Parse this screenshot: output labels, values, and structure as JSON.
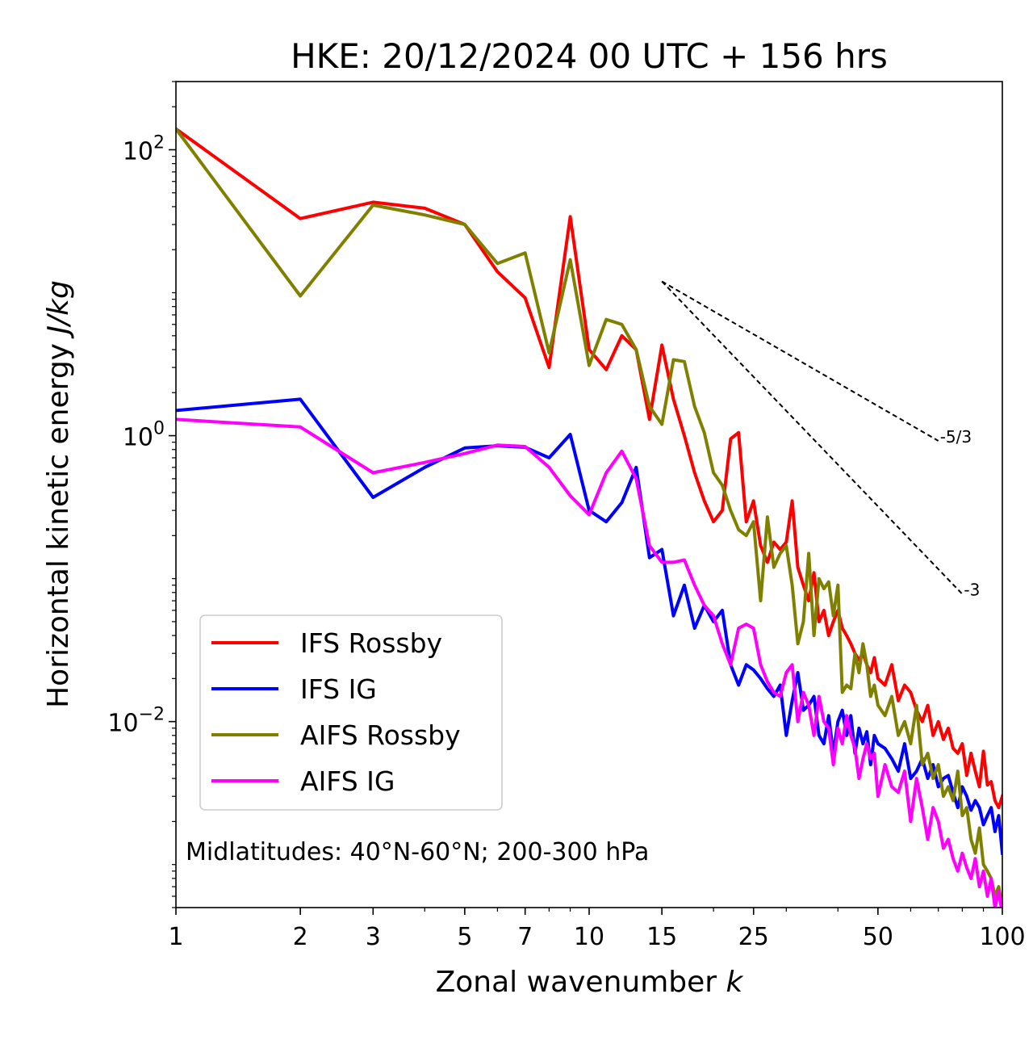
{
  "chart_data": {
    "type": "line",
    "title": "HKE: 20/12/2024 00 UTC + 156 hrs",
    "xlabel": "Zonal wavenumber",
    "xlabel_var": "k",
    "ylabel": "Horizontal kinetic energy",
    "ylabel_unit": "J/kg",
    "xscale": "log",
    "yscale": "log",
    "xlim": [
      1,
      100
    ],
    "ylim": [
      0.0005,
      300
    ],
    "x_ticks": [
      1,
      2,
      3,
      5,
      7,
      10,
      15,
      25,
      50,
      100
    ],
    "x_tick_labels": [
      "1",
      "2",
      "3",
      "5",
      "7",
      "10",
      "15",
      "25",
      "50",
      "100"
    ],
    "y_ticks": [
      0.01,
      1,
      100
    ],
    "y_tick_base": "10",
    "y_tick_exponents": [
      "−2",
      "0",
      "2"
    ],
    "legend_position": "lower-left",
    "annotation": "Midlatitudes: 40°N-60°N; 200-300 hPa",
    "reference_slopes": [
      {
        "label": "-5/3",
        "x": [
          15,
          70
        ],
        "y": [
          12.0,
          0.92
        ]
      },
      {
        "label": "-3",
        "x": [
          15,
          80
        ],
        "y": [
          12.0,
          0.078
        ]
      }
    ],
    "series": [
      {
        "name": "IFS Rossby",
        "color": "#ff0000",
        "x": [
          1,
          2,
          3,
          4,
          5,
          6,
          7,
          8,
          9,
          10,
          11,
          12,
          13,
          14,
          15,
          16,
          17,
          18,
          19,
          20,
          21,
          22,
          23,
          24,
          25,
          26,
          27,
          28,
          29,
          30,
          31,
          32,
          33,
          34,
          35,
          36,
          37,
          38,
          39,
          40,
          41,
          42,
          43,
          44,
          45,
          46,
          47,
          48,
          49,
          50,
          52,
          54,
          56,
          58,
          60,
          62,
          64,
          66,
          68,
          70,
          72,
          74,
          76,
          78,
          80,
          82,
          84,
          86,
          88,
          90,
          92,
          94,
          96,
          98,
          100
        ],
        "y": [
          140,
          33,
          43,
          39,
          30,
          14,
          9.2,
          3.0,
          34,
          4.0,
          2.9,
          5.0,
          4.0,
          1.3,
          4.3,
          1.8,
          1.0,
          0.55,
          0.35,
          0.25,
          0.3,
          0.95,
          1.05,
          0.25,
          0.35,
          0.17,
          0.13,
          0.18,
          0.16,
          0.18,
          0.35,
          0.12,
          0.09,
          0.07,
          0.11,
          0.05,
          0.06,
          0.04,
          0.05,
          0.06,
          0.045,
          0.04,
          0.035,
          0.03,
          0.027,
          0.03,
          0.025,
          0.022,
          0.028,
          0.02,
          0.018,
          0.025,
          0.014,
          0.018,
          0.016,
          0.012,
          0.01,
          0.013,
          0.008,
          0.01,
          0.0075,
          0.009,
          0.0065,
          0.006,
          0.007,
          0.0042,
          0.006,
          0.0045,
          0.0035,
          0.0062,
          0.0036,
          0.0038,
          0.0028,
          0.0025,
          0.003
        ]
      },
      {
        "name": "IFS IG",
        "color": "#0000ff",
        "x": [
          1,
          2,
          3,
          4,
          5,
          6,
          7,
          8,
          9,
          10,
          11,
          12,
          13,
          14,
          15,
          16,
          17,
          18,
          19,
          20,
          21,
          22,
          23,
          24,
          25,
          26,
          27,
          28,
          29,
          30,
          31,
          32,
          33,
          34,
          35,
          36,
          37,
          38,
          39,
          40,
          41,
          42,
          43,
          44,
          45,
          46,
          47,
          48,
          49,
          50,
          52,
          54,
          56,
          58,
          60,
          62,
          64,
          66,
          68,
          70,
          72,
          74,
          76,
          78,
          80,
          82,
          84,
          86,
          88,
          90,
          92,
          94,
          96,
          98,
          100
        ],
        "y": [
          1.5,
          1.8,
          0.37,
          0.6,
          0.82,
          0.85,
          0.83,
          0.7,
          1.02,
          0.3,
          0.25,
          0.34,
          0.6,
          0.14,
          0.16,
          0.055,
          0.09,
          0.045,
          0.065,
          0.05,
          0.06,
          0.025,
          0.018,
          0.025,
          0.023,
          0.02,
          0.017,
          0.015,
          0.018,
          0.008,
          0.014,
          0.022,
          0.012,
          0.013,
          0.015,
          0.008,
          0.007,
          0.011,
          0.006,
          0.01,
          0.012,
          0.008,
          0.011,
          0.006,
          0.009,
          0.007,
          0.0085,
          0.005,
          0.008,
          0.007,
          0.0065,
          0.0055,
          0.0045,
          0.007,
          0.004,
          0.0045,
          0.0055,
          0.004,
          0.005,
          0.0035,
          0.004,
          0.0042,
          0.0032,
          0.0025,
          0.0035,
          0.003,
          0.0024,
          0.0028,
          0.0025,
          0.0019,
          0.0022,
          0.0025,
          0.0017,
          0.0022,
          0.0012
        ]
      },
      {
        "name": "AIFS Rossby",
        "color": "#808000",
        "x": [
          1,
          2,
          3,
          4,
          5,
          6,
          7,
          8,
          9,
          10,
          11,
          12,
          13,
          14,
          15,
          16,
          17,
          18,
          19,
          20,
          21,
          22,
          23,
          24,
          25,
          26,
          27,
          28,
          29,
          30,
          31,
          32,
          33,
          34,
          35,
          36,
          37,
          38,
          39,
          40,
          41,
          42,
          43,
          44,
          45,
          46,
          47,
          48,
          49,
          50,
          52,
          54,
          56,
          58,
          60,
          62,
          64,
          66,
          68,
          70,
          72,
          74,
          76,
          78,
          80,
          82,
          84,
          86,
          88,
          90,
          92,
          94,
          96,
          98,
          100
        ],
        "y": [
          140,
          9.5,
          41,
          35,
          30,
          16,
          19,
          3.8,
          17,
          3.1,
          6.5,
          6.0,
          4.0,
          1.6,
          1.2,
          3.4,
          3.3,
          1.6,
          1.05,
          0.55,
          0.45,
          0.3,
          0.22,
          0.2,
          0.25,
          0.07,
          0.27,
          0.12,
          0.15,
          0.17,
          0.09,
          0.035,
          0.05,
          0.15,
          0.04,
          0.1,
          0.085,
          0.095,
          0.055,
          0.09,
          0.016,
          0.018,
          0.017,
          0.03,
          0.022,
          0.035,
          0.025,
          0.015,
          0.018,
          0.013,
          0.011,
          0.015,
          0.008,
          0.01,
          0.007,
          0.013,
          0.005,
          0.006,
          0.004,
          0.005,
          0.003,
          0.0035,
          0.0028,
          0.0045,
          0.0022,
          0.0025,
          0.0015,
          0.0012,
          0.0018,
          0.001,
          0.0009,
          0.0008,
          0.0006,
          0.0007,
          0.0005
        ]
      },
      {
        "name": "AIFS IG",
        "color": "#ff00ff",
        "x": [
          1,
          2,
          3,
          4,
          5,
          6,
          7,
          8,
          9,
          10,
          11,
          12,
          13,
          14,
          15,
          16,
          17,
          18,
          19,
          20,
          21,
          22,
          23,
          24,
          25,
          26,
          27,
          28,
          29,
          30,
          31,
          32,
          33,
          34,
          35,
          36,
          37,
          38,
          39,
          40,
          41,
          42,
          43,
          44,
          45,
          46,
          47,
          48,
          49,
          50,
          52,
          54,
          56,
          58,
          60,
          62,
          64,
          66,
          68,
          70,
          72,
          74,
          76,
          78,
          80,
          82,
          84,
          86,
          88,
          90,
          92,
          94,
          96,
          98,
          100
        ],
        "y": [
          1.3,
          1.15,
          0.55,
          0.65,
          0.75,
          0.86,
          0.84,
          0.6,
          0.38,
          0.28,
          0.55,
          0.78,
          0.5,
          0.17,
          0.13,
          0.13,
          0.135,
          0.09,
          0.065,
          0.055,
          0.035,
          0.025,
          0.045,
          0.048,
          0.045,
          0.025,
          0.019,
          0.016,
          0.015,
          0.022,
          0.025,
          0.01,
          0.016,
          0.013,
          0.008,
          0.015,
          0.01,
          0.009,
          0.005,
          0.009,
          0.007,
          0.011,
          0.008,
          0.0065,
          0.004,
          0.0055,
          0.007,
          0.0055,
          0.006,
          0.003,
          0.005,
          0.0035,
          0.0032,
          0.0045,
          0.002,
          0.004,
          0.0025,
          0.0015,
          0.0025,
          0.002,
          0.0013,
          0.0015,
          0.0011,
          0.0009,
          0.0012,
          0.00095,
          0.0008,
          0.0011,
          0.0007,
          0.0009,
          0.0006,
          0.0008,
          0.0005,
          0.00065,
          0.00045
        ]
      }
    ]
  }
}
